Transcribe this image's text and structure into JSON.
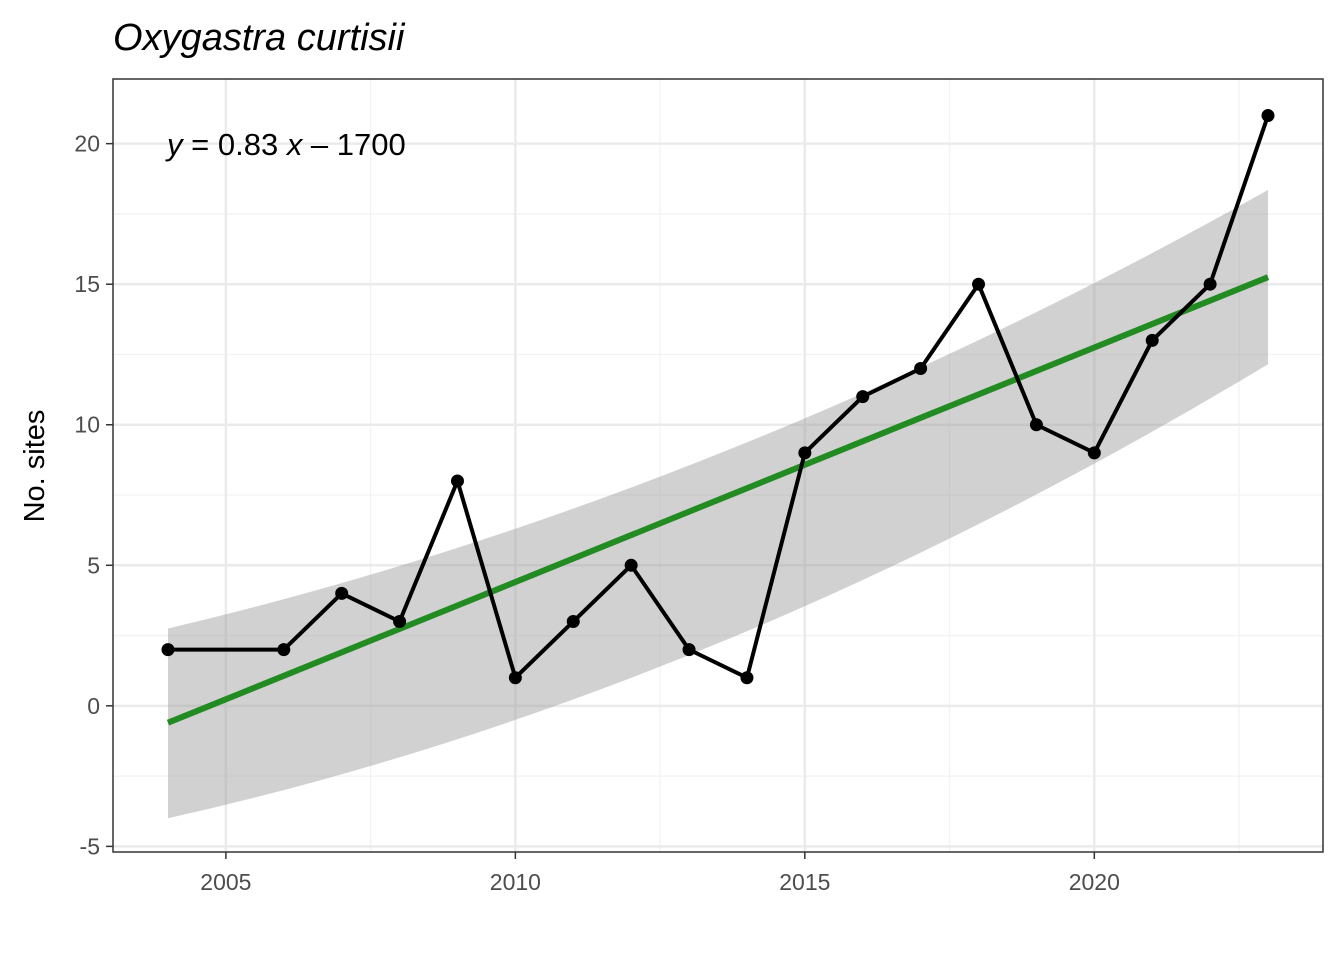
{
  "chart_data": {
    "type": "line",
    "title": "Oxygastra curtisii",
    "xlabel": "",
    "ylabel": "No. sites",
    "xlim": [
      2003.05,
      2023.95
    ],
    "ylim": [
      -5.2,
      22.3
    ],
    "x_ticks": [
      2005,
      2010,
      2015,
      2020
    ],
    "y_ticks": [
      -5,
      0,
      5,
      10,
      15,
      20
    ],
    "grid": true,
    "series": [
      {
        "x": [
          2004,
          2006,
          2007,
          2008,
          2009,
          2010,
          2011,
          2012,
          2013,
          2014,
          2015,
          2016,
          2017,
          2018,
          2019,
          2020,
          2021,
          2022,
          2023
        ],
        "values": [
          2,
          2,
          4,
          3,
          8,
          1,
          3,
          5,
          2,
          1,
          9,
          11,
          12,
          15,
          10,
          9,
          13,
          15,
          21
        ],
        "color": "#000000"
      }
    ],
    "trend": {
      "color": "#228B22",
      "band_color": "#999999",
      "x": [
        2004,
        2023
      ],
      "y": [
        -0.6,
        15.25
      ],
      "band_lower": [
        -4.0,
        12.15
      ],
      "band_upper": [
        2.75,
        18.35
      ],
      "band_mid_lower": -0.5,
      "band_mid_upper": 6.3,
      "band_mid_x": 2010,
      "equation": {
        "y_var": "y",
        "eq_sign": " = ",
        "slope": "0.83",
        "x_var": "x",
        "rest": " – 1700"
      }
    }
  }
}
